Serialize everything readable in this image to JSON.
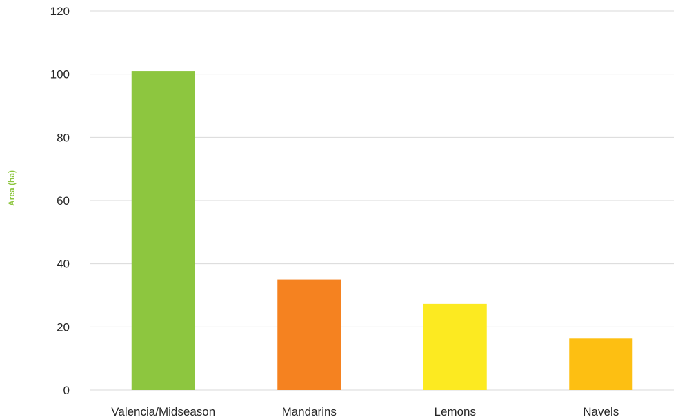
{
  "chart_data": {
    "type": "bar",
    "title": "",
    "xlabel": "",
    "ylabel": "Area (ha)",
    "ylim": [
      0,
      120
    ],
    "yticks": [
      0,
      20,
      40,
      60,
      80,
      100,
      120
    ],
    "grid": true,
    "legend": "none",
    "categories": [
      "Valencia/Midseason",
      "Mandarins",
      "Lemons",
      "Navels"
    ],
    "values": [
      101,
      35,
      27.3,
      16.3
    ],
    "colors": [
      "#8dc63f",
      "#f58220",
      "#fcea21",
      "#fdbf12"
    ],
    "ylabel_color": "#8dc63f"
  }
}
